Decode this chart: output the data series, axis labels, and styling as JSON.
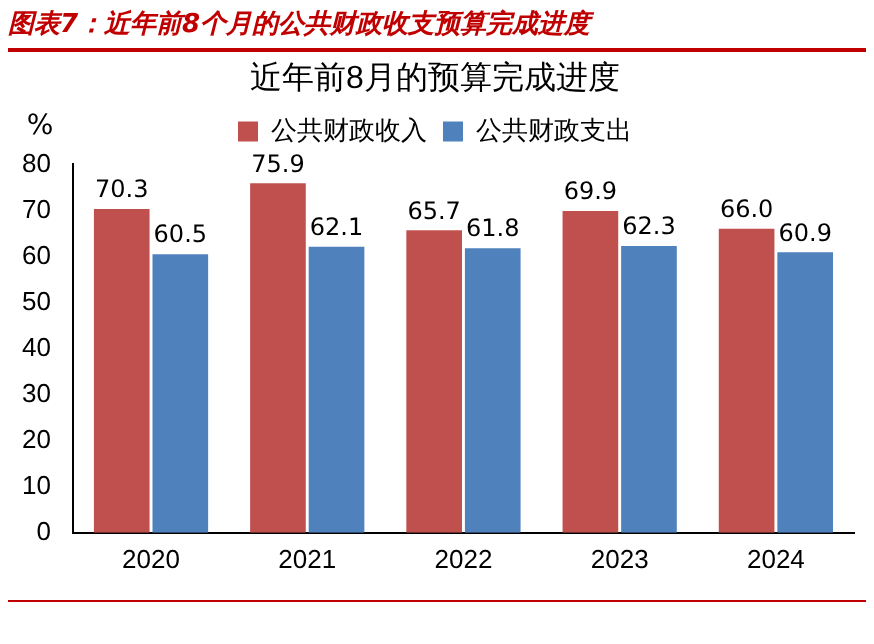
{
  "chart_data": {
    "type": "bar",
    "title": "图表7：近年前8个月的公共财政收支预算完成进度",
    "subtitle": "近年前8月的预算完成进度",
    "ylabel": "%",
    "categories": [
      "2020",
      "2021",
      "2022",
      "2023",
      "2024"
    ],
    "series": [
      {
        "name": "公共财政收入",
        "color": "#c0504d",
        "values": [
          70.3,
          75.9,
          65.7,
          69.9,
          66.0
        ],
        "value_labels": [
          "70.3",
          "75.9",
          "65.7",
          "69.9",
          "66.0"
        ]
      },
      {
        "name": "公共财政支出",
        "color": "#4f81bd",
        "values": [
          60.5,
          62.1,
          61.8,
          62.3,
          60.9
        ],
        "value_labels": [
          "60.5",
          "62.1",
          "61.8",
          "62.3",
          "60.9"
        ]
      }
    ],
    "ylim": [
      0,
      80
    ],
    "yticks": [
      0,
      10,
      20,
      30,
      40,
      50,
      60,
      70,
      80
    ],
    "grid": false,
    "legend": "top"
  }
}
